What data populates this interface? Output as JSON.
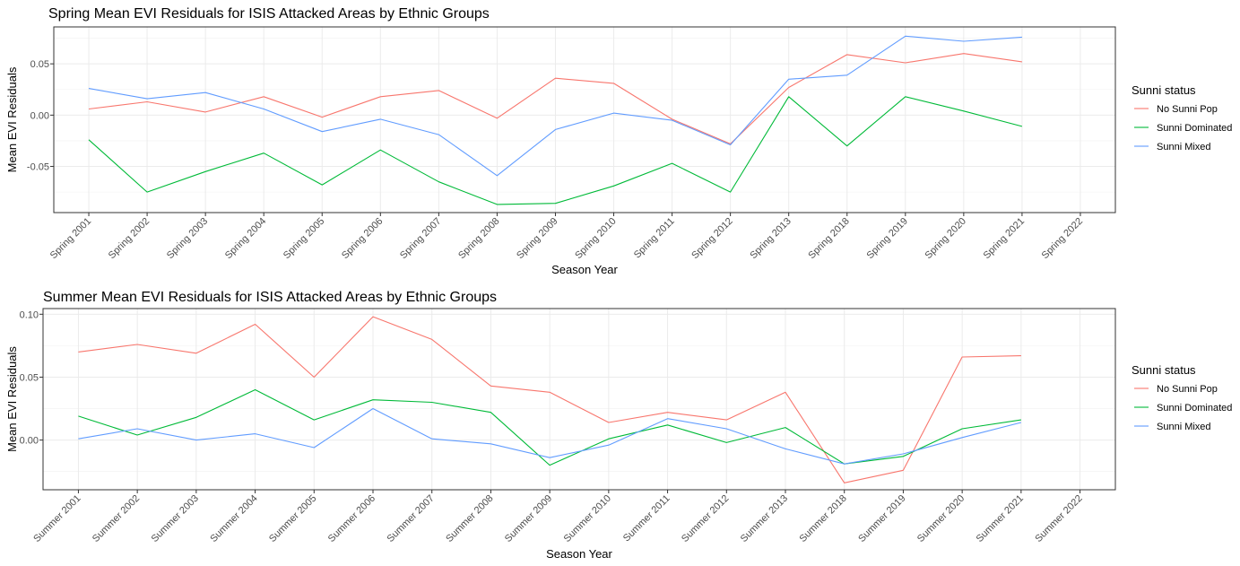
{
  "chart_data": [
    {
      "type": "line",
      "title": "Spring Mean EVI Residuals for ISIS Attacked Areas by Ethnic Groups",
      "xlabel": "Season Year",
      "ylabel": "Mean EVI Residuals",
      "categories": [
        "Spring 2001",
        "Spring 2002",
        "Spring 2003",
        "Spring 2004",
        "Spring 2005",
        "Spring 2006",
        "Spring 2007",
        "Spring 2008",
        "Spring 2009",
        "Spring 2010",
        "Spring 2011",
        "Spring 2012",
        "Spring 2013",
        "Spring 2018",
        "Spring 2019",
        "Spring 2020",
        "Spring 2021",
        "Spring 2022"
      ],
      "ylim": [
        -0.095,
        0.086
      ],
      "yticks": [
        -0.05,
        0.0,
        0.05
      ],
      "ytick_labels": [
        "-0.05",
        "0.00",
        "0.05"
      ],
      "grid": true,
      "legend_title": "Sunni status",
      "legend_position": "right",
      "series": [
        {
          "name": "No Sunni Pop",
          "color": "#F8766D",
          "values": [
            0.006,
            0.013,
            0.003,
            0.018,
            -0.002,
            0.018,
            0.024,
            -0.003,
            0.036,
            0.031,
            -0.004,
            -0.028,
            0.027,
            0.059,
            0.051,
            0.06,
            0.052,
            null
          ]
        },
        {
          "name": "Sunni Dominated",
          "color": "#00BA38",
          "values": [
            -0.024,
            -0.075,
            -0.055,
            -0.037,
            -0.068,
            -0.034,
            -0.065,
            -0.087,
            -0.086,
            -0.069,
            -0.047,
            -0.075,
            0.018,
            -0.03,
            0.018,
            0.004,
            -0.011,
            null
          ]
        },
        {
          "name": "Sunni Mixed",
          "color": "#619CFF",
          "values": [
            0.026,
            0.016,
            0.022,
            0.006,
            -0.016,
            -0.004,
            -0.019,
            -0.059,
            -0.014,
            0.002,
            -0.005,
            -0.029,
            0.035,
            0.039,
            0.077,
            0.072,
            0.076,
            null
          ]
        }
      ]
    },
    {
      "type": "line",
      "title": "Summer Mean EVI Residuals for ISIS Attacked Areas by Ethnic Groups",
      "xlabel": "Season Year",
      "ylabel": "Mean EVI Residuals",
      "categories": [
        "Summer 2001",
        "Summer 2002",
        "Summer 2003",
        "Summer 2004",
        "Summer 2005",
        "Summer 2006",
        "Summer 2007",
        "Summer 2008",
        "Summer 2009",
        "Summer 2010",
        "Summer 2011",
        "Summer 2012",
        "Summer 2013",
        "Summer 2018",
        "Summer 2019",
        "Summer 2020",
        "Summer 2021",
        "Summer 2022"
      ],
      "ylim": [
        -0.0395,
        0.1045
      ],
      "yticks": [
        0.0,
        0.05,
        0.1
      ],
      "ytick_labels": [
        "0.00",
        "0.05",
        "0.10"
      ],
      "grid": true,
      "legend_title": "Sunni status",
      "legend_position": "right",
      "series": [
        {
          "name": "No Sunni Pop",
          "color": "#F8766D",
          "values": [
            0.07,
            0.076,
            0.069,
            0.092,
            0.05,
            0.098,
            0.08,
            0.043,
            0.038,
            0.014,
            0.022,
            0.016,
            0.038,
            -0.034,
            -0.024,
            0.066,
            0.067,
            null
          ]
        },
        {
          "name": "Sunni Dominated",
          "color": "#00BA38",
          "values": [
            0.019,
            0.004,
            0.018,
            0.04,
            0.016,
            0.032,
            0.03,
            0.022,
            -0.02,
            0.001,
            0.012,
            -0.002,
            0.01,
            -0.019,
            -0.013,
            0.009,
            0.016,
            null
          ]
        },
        {
          "name": "Sunni Mixed",
          "color": "#619CFF",
          "values": [
            0.001,
            0.009,
            0.0,
            0.005,
            -0.006,
            0.025,
            0.001,
            -0.003,
            -0.014,
            -0.004,
            0.017,
            0.009,
            -0.007,
            -0.019,
            -0.011,
            0.002,
            0.014,
            null
          ]
        }
      ]
    }
  ]
}
